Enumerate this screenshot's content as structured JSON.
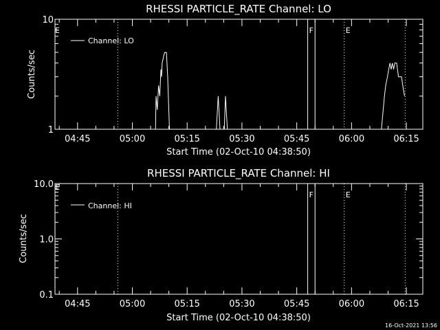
{
  "chart_data": [
    {
      "type": "line",
      "title": "RHESSI PARTICLE_RATE Channel: LO",
      "xlabel": "Start Time (02-Oct-10 04:38:50)",
      "ylabel": "Counts/sec",
      "yscale": "log",
      "ylim": [
        1,
        10
      ],
      "xlim": [
        "04:38:50",
        "06:19:30"
      ],
      "x_ticks": [
        "04:45",
        "05:00",
        "05:15",
        "05:30",
        "05:45",
        "06:00",
        "06:15"
      ],
      "y_ticks": [
        "1",
        "10"
      ],
      "legend": {
        "label": "Channel: LO",
        "placement": "top-left"
      },
      "vlines": [
        {
          "time": "04:56:00",
          "style": "dotted",
          "label": ""
        },
        {
          "time": "05:48:00",
          "style": "solid",
          "label": "F"
        },
        {
          "time": "05:50:00",
          "style": "solid",
          "label": ""
        },
        {
          "time": "05:58:00",
          "style": "dotted",
          "label": "E"
        },
        {
          "time": "06:14:40",
          "style": "dotted",
          "label": ""
        }
      ],
      "edge_label": "E",
      "series": [
        {
          "name": "Channel: LO",
          "segments": [
            {
              "x": [
                "05:06:20",
                "05:06:30",
                "05:06:50",
                "05:07:10",
                "05:07:30",
                "05:07:50",
                "05:08:00",
                "05:08:10",
                "05:08:30",
                "05:08:50",
                "05:09:20",
                "05:09:40",
                "05:10:10"
              ],
              "y": [
                1,
                2,
                1.5,
                2.5,
                2,
                3.5,
                3,
                4,
                4.5,
                5,
                5,
                3,
                1
              ]
            },
            {
              "x": [
                "05:23:00",
                "05:23:30",
                "05:24:00",
                "05:25:10",
                "05:25:30",
                "05:26:00"
              ],
              "y": [
                1,
                2,
                1,
                1,
                2,
                1
              ]
            },
            {
              "x": [
                "06:08:10",
                "06:09:00",
                "06:09:20",
                "06:09:50",
                "06:10:10",
                "06:10:30",
                "06:10:50",
                "06:11:10",
                "06:11:30",
                "06:11:50",
                "06:12:20",
                "06:12:50",
                "06:13:40",
                "06:14:00",
                "06:14:30"
              ],
              "y": [
                1,
                2,
                2.5,
                3,
                3.5,
                4,
                3.5,
                4,
                3.5,
                4,
                4,
                3,
                3,
                2.5,
                2
              ]
            }
          ]
        }
      ]
    },
    {
      "type": "line",
      "title": "RHESSI PARTICLE_RATE Channel: HI",
      "xlabel": "Start Time (02-Oct-10 04:38:50)",
      "ylabel": "Counts/sec",
      "yscale": "log",
      "ylim": [
        0.1,
        10
      ],
      "xlim": [
        "04:38:50",
        "06:19:30"
      ],
      "x_ticks": [
        "04:45",
        "05:00",
        "05:15",
        "05:30",
        "05:45",
        "06:00",
        "06:15"
      ],
      "y_ticks": [
        "0.1",
        "1.0",
        "10.0"
      ],
      "legend": {
        "label": "Channel: HI",
        "placement": "top-left"
      },
      "vlines": [
        {
          "time": "04:56:00",
          "style": "dotted",
          "label": ""
        },
        {
          "time": "05:48:00",
          "style": "solid",
          "label": "F"
        },
        {
          "time": "05:50:00",
          "style": "solid",
          "label": ""
        },
        {
          "time": "05:58:00",
          "style": "dotted",
          "label": "E"
        },
        {
          "time": "06:14:40",
          "style": "dotted",
          "label": ""
        }
      ],
      "edge_label": "E",
      "series": [
        {
          "name": "Channel: HI",
          "segments": []
        }
      ]
    }
  ],
  "footer": {
    "timestamp": "16-Oct-2021 13:56"
  },
  "colors": {
    "background": "#000000",
    "foreground": "#ffffff"
  }
}
